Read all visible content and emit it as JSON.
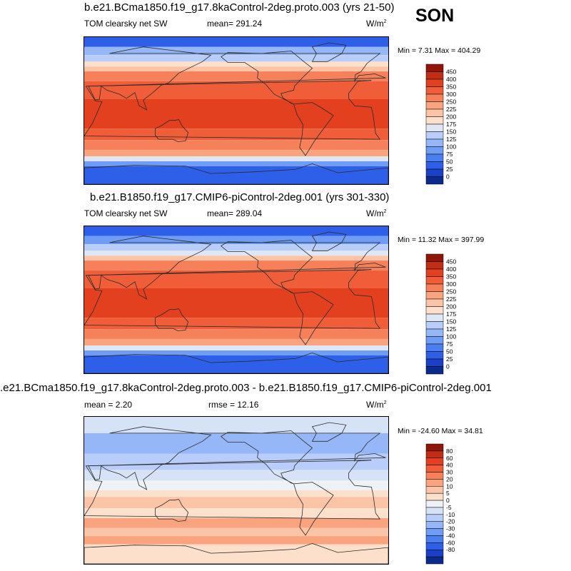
{
  "season": "SON",
  "units_main": "W/m",
  "units_sup": "2",
  "colors": {
    "abs_levels": [
      "#0a2a8c",
      "#1a40c8",
      "#2e5fe8",
      "#4a7ff0",
      "#6f9cf5",
      "#95b6f7",
      "#b8cdf9",
      "#dfe7f4",
      "#fde0cc",
      "#fcc4a6",
      "#f9a47f",
      "#f5805a",
      "#ef5e38",
      "#e2401e",
      "#c22e15",
      "#8f1709"
    ],
    "diff_levels": [
      "#0a2a8c",
      "#1a40c8",
      "#2e5fe8",
      "#4a7ff0",
      "#6f9cf5",
      "#95b6f7",
      "#b8cdf9",
      "#d6e2f5",
      "#eef1f5",
      "#fde0cc",
      "#fcc4a6",
      "#f9a47f",
      "#f5805a",
      "#ef5e38",
      "#e2401e",
      "#c22e15",
      "#8f1709"
    ],
    "land": "#2b2b2b"
  },
  "chart_data": [
    {
      "type": "heatmap",
      "title": "b.e21.BCma1850.f19_g17.8kaControl-2deg.proto.003 (yrs 21-50)",
      "variable": "TOM clearsky net SW",
      "mean_label": "mean= 291.24",
      "minmax_label": "Min =   7.31 Max = 404.29",
      "contour_levels": [
        0,
        25,
        50,
        75,
        100,
        125,
        150,
        175,
        200,
        225,
        250,
        300,
        350,
        400,
        450
      ],
      "colorbar_labels": [
        "450",
        "400",
        "350",
        "300",
        "250",
        "225",
        "200",
        "175",
        "150",
        "125",
        "100",
        "75",
        "50",
        "25",
        "0"
      ],
      "latitude_bands": [
        {
          "lat_from": 90,
          "lat_to": 78,
          "value": 40
        },
        {
          "lat_from": 78,
          "lat_to": 68,
          "value": 100
        },
        {
          "lat_from": 68,
          "lat_to": 60,
          "value": 140
        },
        {
          "lat_from": 60,
          "lat_to": 54,
          "value": 175
        },
        {
          "lat_from": 54,
          "lat_to": 48,
          "value": 220
        },
        {
          "lat_from": 48,
          "lat_to": 36,
          "value": 275
        },
        {
          "lat_from": 36,
          "lat_to": 14,
          "value": 330
        },
        {
          "lat_from": 14,
          "lat_to": -22,
          "value": 370
        },
        {
          "lat_from": -22,
          "lat_to": -36,
          "value": 330
        },
        {
          "lat_from": -36,
          "lat_to": -48,
          "value": 275
        },
        {
          "lat_from": -48,
          "lat_to": -56,
          "value": 230
        },
        {
          "lat_from": -56,
          "lat_to": -62,
          "value": 150
        },
        {
          "lat_from": -62,
          "lat_to": -68,
          "value": 90
        },
        {
          "lat_from": -68,
          "lat_to": -90,
          "value": 40
        }
      ]
    },
    {
      "type": "heatmap",
      "title": "b.e21.B1850.f19_g17.CMIP6-piControl-2deg.001 (yrs 301-330)",
      "variable": "TOM clearsky net SW",
      "mean_label": "mean= 289.04",
      "minmax_label": "Min =  11.32 Max = 397.99",
      "contour_levels": [
        0,
        25,
        50,
        75,
        100,
        125,
        150,
        175,
        200,
        225,
        250,
        300,
        350,
        400,
        450
      ],
      "colorbar_labels": [
        "450",
        "400",
        "350",
        "300",
        "250",
        "225",
        "200",
        "175",
        "150",
        "125",
        "100",
        "75",
        "50",
        "25",
        "0"
      ],
      "latitude_bands": [
        {
          "lat_from": 90,
          "lat_to": 78,
          "value": 35
        },
        {
          "lat_from": 78,
          "lat_to": 68,
          "value": 95
        },
        {
          "lat_from": 68,
          "lat_to": 60,
          "value": 135
        },
        {
          "lat_from": 60,
          "lat_to": 54,
          "value": 170
        },
        {
          "lat_from": 54,
          "lat_to": 48,
          "value": 215
        },
        {
          "lat_from": 48,
          "lat_to": 36,
          "value": 270
        },
        {
          "lat_from": 36,
          "lat_to": 14,
          "value": 325
        },
        {
          "lat_from": 14,
          "lat_to": -22,
          "value": 365
        },
        {
          "lat_from": -22,
          "lat_to": -36,
          "value": 330
        },
        {
          "lat_from": -36,
          "lat_to": -48,
          "value": 280
        },
        {
          "lat_from": -48,
          "lat_to": -56,
          "value": 235
        },
        {
          "lat_from": -56,
          "lat_to": -62,
          "value": 160
        },
        {
          "lat_from": -62,
          "lat_to": -68,
          "value": 95
        },
        {
          "lat_from": -68,
          "lat_to": -90,
          "value": 40
        }
      ]
    },
    {
      "type": "heatmap",
      "title": ".e21.BCma1850.f19_g17.8kaControl-2deg.proto.003 - b.e21.B1850.f19_g17.CMIP6-piControl-2deg.001",
      "mean_label": "mean =   2.20",
      "rmse_label": "rmse =  12.16",
      "minmax_label": "Min = -24.60 Max =  34.81",
      "contour_levels": [
        -80,
        -60,
        -40,
        -30,
        -20,
        -10,
        -5,
        0,
        5,
        10,
        20,
        30,
        40,
        60,
        80
      ],
      "colorbar_labels": [
        "80",
        "60",
        "40",
        "30",
        "20",
        "10",
        "5",
        "0",
        "-5",
        "-10",
        "-20",
        "-30",
        "-40",
        "-60",
        "-80"
      ],
      "latitude_bands": [
        {
          "lat_from": 90,
          "lat_to": 70,
          "value": -4
        },
        {
          "lat_from": 70,
          "lat_to": 45,
          "value": -12
        },
        {
          "lat_from": 45,
          "lat_to": 25,
          "value": -8
        },
        {
          "lat_from": 25,
          "lat_to": 12,
          "value": -3
        },
        {
          "lat_from": 12,
          "lat_to": 0,
          "value": 3
        },
        {
          "lat_from": 0,
          "lat_to": -8,
          "value": 8
        },
        {
          "lat_from": -8,
          "lat_to": -22,
          "value": 15
        },
        {
          "lat_from": -22,
          "lat_to": -34,
          "value": 8
        },
        {
          "lat_from": -34,
          "lat_to": -46,
          "value": 25
        },
        {
          "lat_from": -46,
          "lat_to": -56,
          "value": 12
        },
        {
          "lat_from": -56,
          "lat_to": -66,
          "value": 22
        },
        {
          "lat_from": -66,
          "lat_to": -90,
          "value": 8
        }
      ]
    }
  ]
}
